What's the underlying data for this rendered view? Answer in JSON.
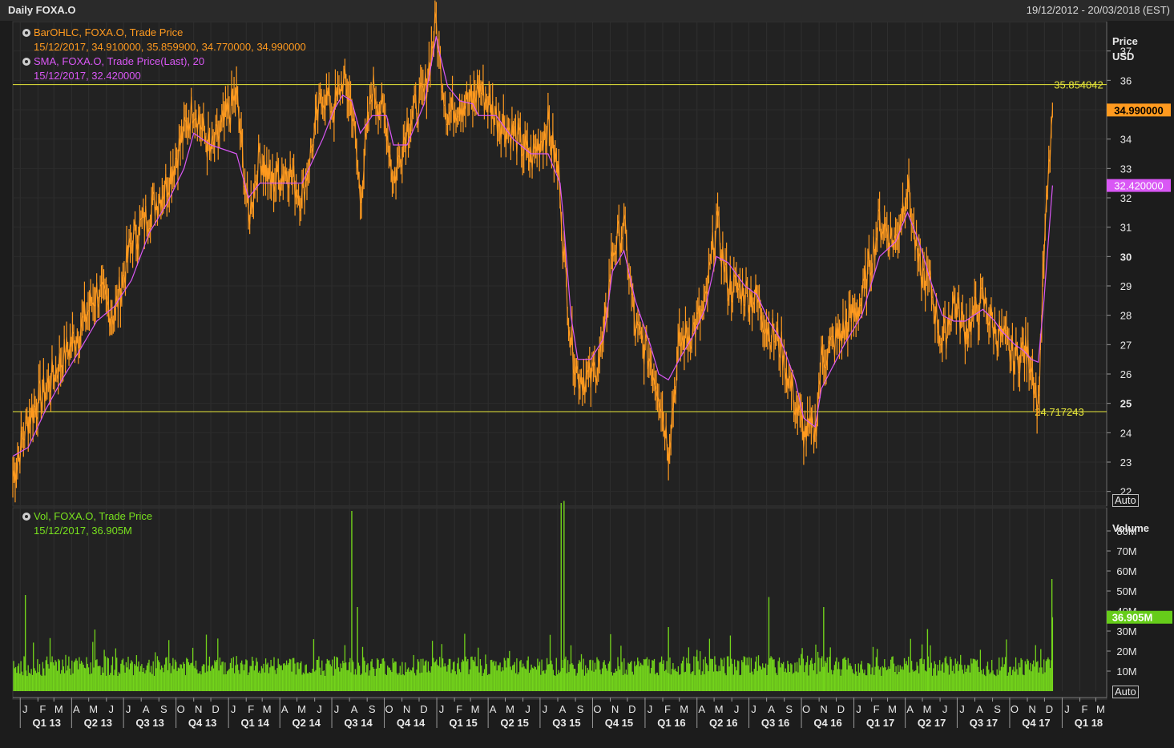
{
  "window": {
    "title": "Daily FOXA.O",
    "date_range": "19/12/2012 - 20/03/2018 (EST)"
  },
  "legend": {
    "ohlc_title": "BarOHLC, FOXA.O, Trade Price",
    "ohlc_values": "15/12/2017, 34.910000, 35.859900, 34.770000, 34.990000",
    "sma_title": "SMA, FOXA.O, Trade Price(Last),  20",
    "sma_values": "15/12/2017, 32.420000",
    "vol_title": "Vol, FOXA.O, Trade Price",
    "vol_values": "15/12/2017, 36.905M"
  },
  "axes": {
    "price_title_1": "Price",
    "price_title_2": "USD",
    "volume_title": "Volume",
    "auto_label": "Auto"
  },
  "colors": {
    "price": "#ff9a1f",
    "sma": "#d957f5",
    "volume": "#73d41b",
    "hline": "#e8e83a",
    "last_price_bg": "#ff9a1f",
    "sma_bg": "#d957f5",
    "vol_bg": "#66cc1a"
  },
  "chart_data": [
    {
      "type": "line",
      "description_series": "BarOHLC, FOXA.O, Trade Price",
      "y_unit": "USD",
      "ylim": [
        21.5,
        38
      ],
      "y_ticks": [
        22,
        23,
        24,
        25,
        26,
        27,
        28,
        29,
        30,
        31,
        32,
        33,
        34,
        35,
        36,
        37
      ],
      "grid": true,
      "x": [
        "2012-12-19",
        "2013-01-15",
        "2013-02-15",
        "2013-03-15",
        "2013-04-15",
        "2013-05-15",
        "2013-06-15",
        "2013-07-15",
        "2013-08-15",
        "2013-09-15",
        "2013-10-15",
        "2013-11-01",
        "2013-12-01",
        "2014-01-15",
        "2014-02-05",
        "2014-02-25",
        "2014-03-15",
        "2014-04-15",
        "2014-05-10",
        "2014-06-15",
        "2014-07-05",
        "2014-07-20",
        "2014-08-05",
        "2014-08-20",
        "2014-09-10",
        "2014-10-05",
        "2014-10-17",
        "2014-11-10",
        "2014-12-10",
        "2014-12-31",
        "2015-01-05",
        "2015-01-20",
        "2015-02-10",
        "2015-03-05",
        "2015-03-15",
        "2015-04-15",
        "2015-05-15",
        "2015-06-15",
        "2015-07-15",
        "2015-08-05",
        "2015-08-10",
        "2015-08-24",
        "2015-09-05",
        "2015-09-28",
        "2015-10-20",
        "2015-11-05",
        "2015-11-25",
        "2015-12-15",
        "2016-01-10",
        "2016-01-25",
        "2016-02-11",
        "2016-03-01",
        "2016-03-25",
        "2016-04-15",
        "2016-05-05",
        "2016-05-25",
        "2016-06-24",
        "2016-07-15",
        "2016-08-05",
        "2016-08-25",
        "2016-09-20",
        "2016-10-05",
        "2016-10-25",
        "2016-11-05",
        "2016-12-15",
        "2017-01-15",
        "2017-02-15",
        "2017-03-15",
        "2017-04-05",
        "2017-04-25",
        "2017-05-15",
        "2017-06-05",
        "2017-06-25",
        "2017-07-15",
        "2017-08-15",
        "2017-09-05",
        "2017-09-15",
        "2017-10-10",
        "2017-10-25",
        "2017-11-08",
        "2017-11-20",
        "2017-11-30",
        "2017-12-15"
      ],
      "close": [
        22.5,
        24.5,
        25.5,
        26.5,
        27.5,
        28.8,
        28.0,
        30.5,
        31.5,
        32.5,
        34.2,
        35.2,
        33.5,
        35.5,
        31.3,
        33.5,
        32.5,
        33.0,
        32.0,
        35.6,
        35.0,
        36.0,
        35.2,
        32.0,
        35.8,
        34.5,
        32.5,
        34.5,
        35.5,
        38.0,
        36.8,
        34.8,
        35.3,
        35.2,
        35.8,
        34.8,
        34.2,
        33.3,
        34.5,
        32.5,
        30.5,
        27.2,
        26.0,
        25.8,
        27.0,
        30.2,
        31.0,
        27.5,
        26.5,
        25.5,
        23.5,
        27.0,
        27.5,
        28.2,
        31.2,
        29.0,
        28.8,
        28.5,
        27.5,
        27.0,
        25.0,
        24.0,
        24.0,
        26.5,
        27.5,
        28.5,
        31.2,
        30.5,
        32.5,
        29.5,
        29.0,
        27.0,
        28.5,
        27.5,
        28.5,
        27.5,
        27.3,
        26.5,
        26.8,
        26.5,
        24.8,
        30.0,
        34.99
      ],
      "sma_name": "SMA, FOXA.O, Trade Price(Last),  20",
      "sma": [
        23.2,
        23.5,
        24.8,
        25.8,
        26.8,
        27.8,
        28.3,
        29.2,
        30.8,
        31.8,
        33.0,
        34.2,
        33.8,
        33.5,
        32.0,
        32.5,
        32.5,
        32.5,
        32.5,
        34.0,
        35.0,
        35.5,
        35.3,
        34.2,
        34.8,
        34.8,
        33.8,
        33.8,
        35.2,
        37.5,
        37.0,
        35.8,
        35.3,
        35.2,
        34.8,
        34.8,
        34.0,
        33.5,
        33.5,
        32.5,
        31.5,
        28.0,
        26.5,
        26.5,
        27.2,
        29.5,
        30.2,
        28.5,
        27.0,
        26.0,
        25.8,
        26.5,
        27.3,
        28.2,
        30.0,
        29.8,
        29.0,
        28.7,
        27.8,
        27.2,
        25.8,
        24.5,
        24.2,
        25.5,
        27.0,
        28.0,
        30.0,
        30.5,
        31.5,
        30.5,
        29.2,
        28.0,
        27.8,
        27.8,
        28.2,
        27.8,
        27.5,
        27.0,
        26.8,
        26.5,
        26.4,
        28.5,
        32.42
      ],
      "horizontal_lines": [
        35.854042,
        24.717243
      ],
      "horizontal_line_labels": [
        "35.854042",
        "24.717243"
      ],
      "last_price_label": "34.990000",
      "sma_last_label": "32.420000"
    },
    {
      "type": "bar",
      "description_series": "Vol, FOXA.O, Trade Price",
      "y_unit": "M",
      "ylim": [
        0,
        90
      ],
      "y_tick_labels": [
        "10M",
        "20M",
        "30M",
        "40M",
        "50M",
        "60M",
        "70M",
        "80M"
      ],
      "spikes": [
        {
          "x": "2013-01-10",
          "value": 48
        },
        {
          "x": "2014-08-05",
          "value": 90
        },
        {
          "x": "2014-08-15",
          "value": 42
        },
        {
          "x": "2015-08-07",
          "value": 94
        },
        {
          "x": "2015-08-12",
          "value": 95
        },
        {
          "x": "2016-02-11",
          "value": 32
        },
        {
          "x": "2016-08-05",
          "value": 47
        },
        {
          "x": "2016-11-09",
          "value": 42
        },
        {
          "x": "2017-05-10",
          "value": 31
        },
        {
          "x": "2017-12-14",
          "value": 56
        },
        {
          "x": "2017-12-15",
          "value": 36.905
        }
      ],
      "baseline_level": 12,
      "last_volume_label": "36.905M"
    }
  ],
  "x_axis": {
    "months": [
      "J",
      "F",
      "M",
      "A",
      "M",
      "J",
      "J",
      "A",
      "S",
      "O",
      "N",
      "D",
      "J",
      "F",
      "M",
      "A",
      "M",
      "J",
      "J",
      "A",
      "S",
      "O",
      "N",
      "D",
      "J",
      "F",
      "M",
      "A",
      "M",
      "J",
      "J",
      "A",
      "S",
      "O",
      "N",
      "D",
      "J",
      "F",
      "M",
      "A",
      "M",
      "J",
      "J",
      "A",
      "S",
      "O",
      "N",
      "D",
      "J",
      "F",
      "M",
      "A",
      "M",
      "J",
      "J",
      "A",
      "S",
      "O",
      "N",
      "D",
      "J",
      "F",
      "M"
    ],
    "quarters": [
      "Q1 13",
      "Q2 13",
      "Q3 13",
      "Q4 13",
      "Q1 14",
      "Q2 14",
      "Q3 14",
      "Q4 14",
      "Q1 15",
      "Q2 15",
      "Q3 15",
      "Q4 15",
      "Q1 16",
      "Q2 16",
      "Q3 16",
      "Q4 16",
      "Q1 17",
      "Q2 17",
      "Q3 17",
      "Q4 17",
      "Q1 18"
    ]
  }
}
